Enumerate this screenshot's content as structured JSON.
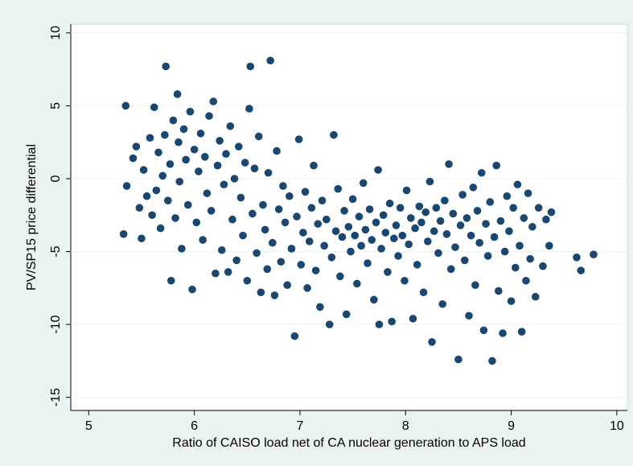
{
  "chart_data": {
    "type": "scatter",
    "x_label": "Ratio of CAISO load net of CA nuclear generation to APS load",
    "y_label": "PV/SP15 price differential",
    "xlim": [
      4.83,
      10.1
    ],
    "ylim": [
      -15.9,
      10.6
    ],
    "xticks": [
      5,
      6,
      7,
      8,
      9,
      10
    ],
    "yticks": [
      -15,
      -10,
      -5,
      0,
      5,
      10
    ],
    "grid": true,
    "color": "#1a476f",
    "x": [
      5.33,
      5.35,
      5.36,
      5.42,
      5.45,
      5.48,
      5.5,
      5.52,
      5.55,
      5.58,
      5.6,
      5.62,
      5.64,
      5.66,
      5.68,
      5.7,
      5.72,
      5.73,
      5.75,
      5.77,
      5.78,
      5.8,
      5.82,
      5.84,
      5.85,
      5.86,
      5.88,
      5.9,
      5.92,
      5.94,
      5.96,
      5.98,
      6.0,
      6.02,
      6.04,
      6.06,
      6.08,
      6.1,
      6.12,
      6.14,
      6.16,
      6.18,
      6.2,
      6.22,
      6.24,
      6.26,
      6.28,
      6.3,
      6.32,
      6.34,
      6.36,
      6.38,
      6.4,
      6.42,
      6.44,
      6.46,
      6.48,
      6.5,
      6.52,
      6.53,
      6.55,
      6.57,
      6.59,
      6.61,
      6.63,
      6.65,
      6.67,
      6.69,
      6.7,
      6.72,
      6.74,
      6.76,
      6.78,
      6.8,
      6.82,
      6.84,
      6.86,
      6.88,
      6.9,
      6.92,
      6.95,
      6.97,
      6.99,
      7.01,
      7.03,
      7.05,
      7.07,
      7.09,
      7.11,
      7.13,
      7.15,
      7.17,
      7.19,
      7.21,
      7.23,
      7.25,
      7.28,
      7.3,
      7.32,
      7.34,
      7.36,
      7.38,
      7.4,
      7.42,
      7.44,
      7.46,
      7.48,
      7.5,
      7.52,
      7.54,
      7.56,
      7.58,
      7.6,
      7.62,
      7.64,
      7.66,
      7.68,
      7.7,
      7.72,
      7.74,
      7.75,
      7.77,
      7.79,
      7.81,
      7.83,
      7.85,
      7.87,
      7.89,
      7.91,
      7.93,
      7.95,
      7.97,
      7.99,
      8.01,
      8.03,
      8.05,
      8.07,
      8.09,
      8.11,
      8.13,
      8.15,
      8.17,
      8.19,
      8.21,
      8.23,
      8.25,
      8.27,
      8.29,
      8.31,
      8.33,
      8.35,
      8.37,
      8.39,
      8.41,
      8.43,
      8.45,
      8.47,
      8.5,
      8.52,
      8.54,
      8.56,
      8.58,
      8.6,
      8.62,
      8.64,
      8.66,
      8.68,
      8.7,
      8.72,
      8.74,
      8.76,
      8.78,
      8.8,
      8.82,
      8.84,
      8.86,
      8.88,
      8.9,
      8.92,
      8.94,
      8.96,
      8.98,
      9.0,
      9.02,
      9.04,
      9.06,
      9.08,
      9.1,
      9.12,
      9.14,
      9.16,
      9.18,
      9.2,
      9.23,
      9.26,
      9.3,
      9.33,
      9.36,
      9.38,
      9.62,
      9.66,
      9.78
    ],
    "y": [
      -3.8,
      5.0,
      -0.5,
      1.4,
      2.2,
      -2.0,
      -4.1,
      0.6,
      -1.2,
      2.8,
      -2.5,
      4.9,
      -0.8,
      1.8,
      -3.4,
      0.2,
      3.0,
      7.7,
      -1.5,
      1.0,
      -7.0,
      4.0,
      -2.7,
      5.8,
      2.5,
      -0.2,
      -4.8,
      3.4,
      1.3,
      -1.8,
      4.6,
      -7.6,
      2.0,
      -3.0,
      0.5,
      3.1,
      -4.2,
      1.5,
      -1.0,
      4.3,
      -2.2,
      5.3,
      -6.5,
      0.9,
      2.6,
      -4.9,
      -0.4,
      1.7,
      -6.4,
      3.6,
      -2.8,
      0.0,
      -5.6,
      2.2,
      -1.3,
      -3.9,
      1.1,
      -7.0,
      4.8,
      7.7,
      -2.4,
      0.7,
      -5.1,
      2.9,
      -7.8,
      -1.8,
      -3.5,
      -6.2,
      0.4,
      8.1,
      -4.4,
      -8.0,
      1.9,
      -2.1,
      -5.7,
      -0.5,
      -3.0,
      -7.3,
      -1.2,
      -4.8,
      -10.8,
      -2.6,
      2.7,
      -5.9,
      -3.7,
      -0.9,
      -7.5,
      -4.3,
      -2.0,
      0.9,
      -6.3,
      -3.1,
      -8.8,
      -1.5,
      -4.6,
      -2.8,
      -10.0,
      -5.4,
      3.0,
      -3.6,
      -0.7,
      -6.7,
      -4.0,
      -2.2,
      -9.3,
      -3.3,
      -5.0,
      -1.4,
      -3.9,
      -7.2,
      -2.6,
      -4.6,
      -0.3,
      -3.5,
      -5.8,
      -2.1,
      -4.2,
      -8.3,
      -3.0,
      0.6,
      -10.0,
      -4.8,
      -2.5,
      -3.7,
      -6.4,
      -1.7,
      -9.8,
      -4.1,
      -3.2,
      -5.3,
      -2.0,
      -3.9,
      -7.0,
      -0.8,
      -4.5,
      -2.7,
      -9.6,
      -3.4,
      -5.9,
      -1.9,
      -3.0,
      -7.8,
      -2.3,
      -4.3,
      -0.2,
      -11.2,
      -3.6,
      -2.0,
      -5.1,
      -2.9,
      -8.6,
      -1.5,
      -3.8,
      1.0,
      -6.2,
      -2.4,
      -4.7,
      -12.4,
      -3.2,
      -1.1,
      -5.6,
      -2.7,
      -9.4,
      -3.9,
      -0.6,
      -7.3,
      -2.2,
      -4.4,
      0.4,
      -10.4,
      -3.1,
      -5.3,
      -1.6,
      -12.5,
      -4.0,
      0.9,
      -7.7,
      -2.9,
      -10.6,
      -5.0,
      -1.2,
      -3.6,
      -8.4,
      -2.0,
      -6.1,
      -0.4,
      -4.6,
      -10.5,
      -2.7,
      -7.0,
      -1.0,
      -5.5,
      -3.3,
      -8.1,
      -2.0,
      -6.0,
      -2.8,
      -4.6,
      -2.3,
      -5.4,
      -6.3,
      -5.2
    ]
  }
}
